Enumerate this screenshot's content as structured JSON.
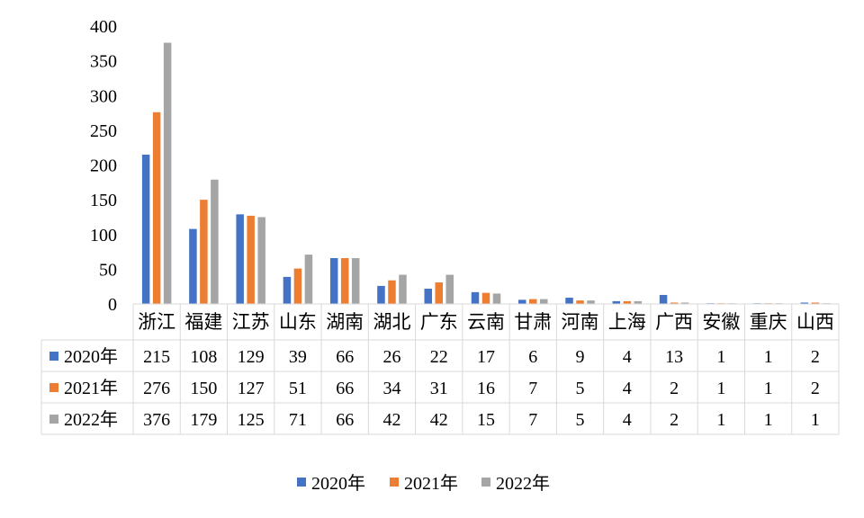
{
  "chart_data": {
    "type": "bar",
    "categories": [
      "浙江",
      "福建",
      "江苏",
      "山东",
      "湖南",
      "湖北",
      "广东",
      "云南",
      "甘肃",
      "河南",
      "上海",
      "广西",
      "安徽",
      "重庆",
      "山西"
    ],
    "series": [
      {
        "name": "2020年",
        "color": "#4472C4",
        "values": [
          215,
          108,
          129,
          39,
          66,
          26,
          22,
          17,
          6,
          9,
          4,
          13,
          1,
          1,
          2
        ]
      },
      {
        "name": "2021年",
        "color": "#ED7D31",
        "values": [
          276,
          150,
          127,
          51,
          66,
          34,
          31,
          16,
          7,
          5,
          4,
          2,
          1,
          1,
          2
        ]
      },
      {
        "name": "2022年",
        "color": "#A5A5A5",
        "values": [
          376,
          179,
          125,
          71,
          66,
          42,
          42,
          15,
          7,
          5,
          4,
          2,
          1,
          1,
          1
        ]
      }
    ],
    "ylim": [
      0,
      400
    ],
    "yticks": [
      0,
      50,
      100,
      150,
      200,
      250,
      300,
      350,
      400
    ],
    "grid": false,
    "legend_position": "bottom",
    "data_table": true
  }
}
